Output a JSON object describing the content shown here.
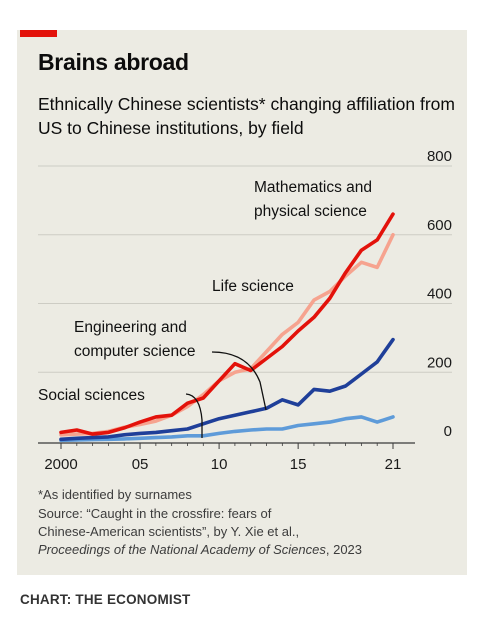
{
  "header": {
    "title": "Brains abroad",
    "subtitle": "Ethnically Chinese scientists* changing affiliation from US to Chinese institutions, by field"
  },
  "footnotes": {
    "note": "*As identified by surnames",
    "source_line1": "Source: “Caught in the crossfire: fears of",
    "source_line2": "Chinese-American scientists”, by Y. Xie et al.,",
    "source_line3_italic": "Proceedings of the National Academy of Sciences",
    "source_line3_year": ", 2023"
  },
  "credit": "CHART: THE ECONOMIST",
  "colors": {
    "math": "#e3120b",
    "life": "#f6a38f",
    "eng": "#1f3f99",
    "social": "#5e9bd9",
    "accent": "#e3120b"
  },
  "chart_data": {
    "type": "line",
    "title": "Brains abroad",
    "subtitle": "Ethnically Chinese scientists* changing affiliation from US to Chinese institutions, by field",
    "x": [
      2000,
      2001,
      2002,
      2003,
      2004,
      2005,
      2006,
      2007,
      2008,
      2009,
      2010,
      2011,
      2012,
      2013,
      2014,
      2015,
      2016,
      2017,
      2018,
      2019,
      2020,
      2021
    ],
    "x_ticks": [
      2000,
      2005,
      2010,
      2015,
      2021
    ],
    "x_tick_labels": [
      "2000",
      "05",
      "10",
      "15",
      "21"
    ],
    "ylim": [
      0,
      800
    ],
    "y_ticks": [
      0,
      200,
      400,
      600,
      800
    ],
    "y_axis_position": "right",
    "grid": "horizontal",
    "series": [
      {
        "name": "Mathematics and physical science",
        "color_key": "math",
        "values": [
          25,
          32,
          20,
          25,
          38,
          55,
          70,
          75,
          110,
          125,
          175,
          225,
          205,
          240,
          275,
          320,
          360,
          415,
          490,
          555,
          585,
          660
        ]
      },
      {
        "name": "Life science",
        "color_key": "life",
        "values": [
          18,
          20,
          22,
          28,
          40,
          48,
          58,
          75,
          100,
          135,
          175,
          200,
          210,
          260,
          310,
          345,
          410,
          435,
          480,
          520,
          505,
          600
        ]
      },
      {
        "name": "Engineering and computer science",
        "color_key": "eng",
        "values": [
          5,
          8,
          10,
          12,
          18,
          22,
          25,
          30,
          35,
          50,
          65,
          75,
          85,
          95,
          120,
          105,
          150,
          145,
          160,
          195,
          230,
          295
        ]
      },
      {
        "name": "Social sciences",
        "color_key": "social",
        "values": [
          2,
          3,
          4,
          5,
          6,
          8,
          10,
          12,
          15,
          15,
          22,
          28,
          32,
          35,
          35,
          45,
          50,
          55,
          65,
          70,
          55,
          70
        ]
      }
    ]
  }
}
